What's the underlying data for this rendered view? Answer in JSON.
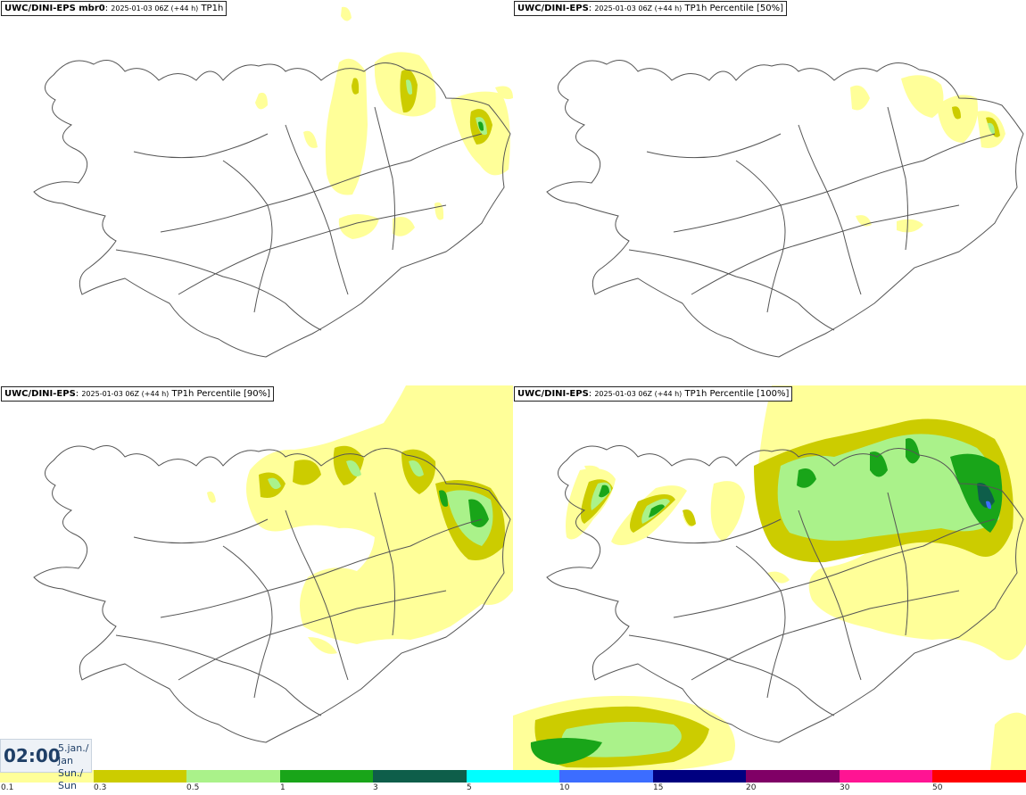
{
  "panels": [
    {
      "model": "UWC/DINI-EPS mbr0",
      "run": "2025-01-03 06Z (+44 h)",
      "field": "TP1h"
    },
    {
      "model": "UWC/DINI-EPS",
      "run": "2025-01-03 06Z (+44 h)",
      "field": "TP1h Percentile [50%]"
    },
    {
      "model": "UWC/DINI-EPS",
      "run": "2025-01-03 06Z (+44 h)",
      "field": "TP1h Percentile [90%]"
    },
    {
      "model": "UWC/DINI-EPS",
      "run": "2025-01-03 06Z (+44 h)",
      "field": "TP1h Percentile [100%]"
    }
  ],
  "valid_time": {
    "time": "02:00",
    "date_line1": "5.jan./ Jan",
    "date_line2": "Sun./ Sun"
  },
  "legend": {
    "labels": [
      "0.1",
      "0.3",
      "0.5",
      "1",
      "3",
      "5",
      "10",
      "15",
      "20",
      "30",
      "50"
    ],
    "colors": [
      "#ffff99",
      "#cccc00",
      "#aaf28a",
      "#19a519",
      "#0e5e4a",
      "#00ffff",
      "#3c6dff",
      "#000080",
      "#800066",
      "#ff1493",
      "#ff0000"
    ]
  }
}
